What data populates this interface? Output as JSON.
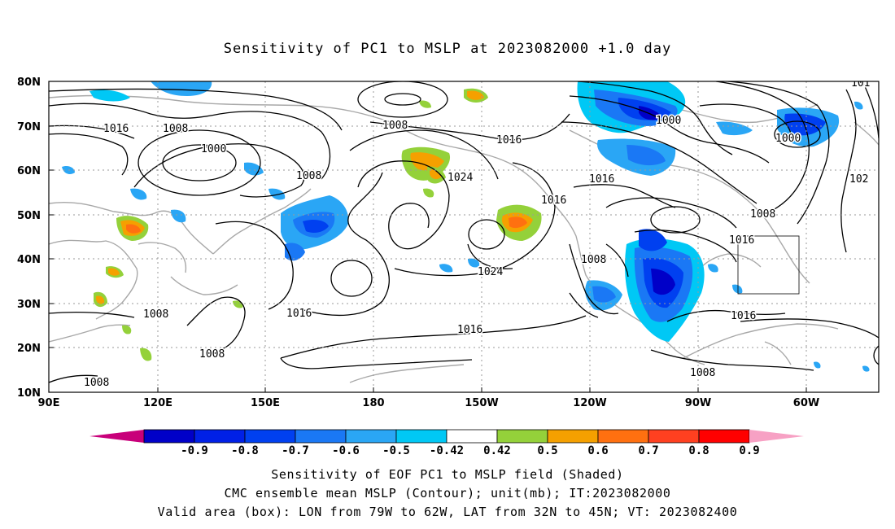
{
  "title": "Sensitivity of PC1 to MSLP at 2023082000 +1.0 day",
  "axes": {
    "lat_labels": [
      "80N",
      "70N",
      "60N",
      "50N",
      "40N",
      "30N",
      "20N",
      "10N"
    ],
    "lon_labels": [
      "90E",
      "120E",
      "150E",
      "180",
      "150W",
      "120W",
      "90W",
      "60W"
    ]
  },
  "colorbar": {
    "tick_labels": [
      "-0.9",
      "-0.8",
      "-0.7",
      "-0.6",
      "-0.5",
      "-0.42",
      "0.42",
      "0.5",
      "0.6",
      "0.7",
      "0.8",
      "0.9"
    ],
    "low_cap_color": "#c8007a",
    "high_cap_color": "#f7a1c4",
    "colors": [
      "#0000c8",
      "#0020e6",
      "#0040f0",
      "#1a78f5",
      "#2aa6f5",
      "#00c8f5",
      "#ffffff",
      "#94d13a",
      "#f5a000",
      "#ff7010",
      "#ff4020",
      "#ff0000"
    ]
  },
  "contour_labels": [
    "1016",
    "1008",
    "1008",
    "1000",
    "1008",
    "1024",
    "1016",
    "1016",
    "1016",
    "1024",
    "1008",
    "1008",
    "1008",
    "1000",
    "1016",
    "1008",
    "1000",
    "1016",
    "1016",
    "1008",
    "1016",
    "1008",
    "101",
    "102",
    "1016"
  ],
  "valid_box": {
    "lon_from": "79W",
    "lon_to": "62W",
    "lat_from": "32N",
    "lat_to": "45N"
  },
  "captions": {
    "line1": "Sensitivity of EOF PC1 to MSLP field (Shaded)",
    "line2": "CMC ensemble mean MSLP (Contour); unit(mb); IT:2023082000",
    "line3": "Valid area (box): LON from 79W to 62W, LAT from 32N to 45N; VT: 2023082400"
  }
}
